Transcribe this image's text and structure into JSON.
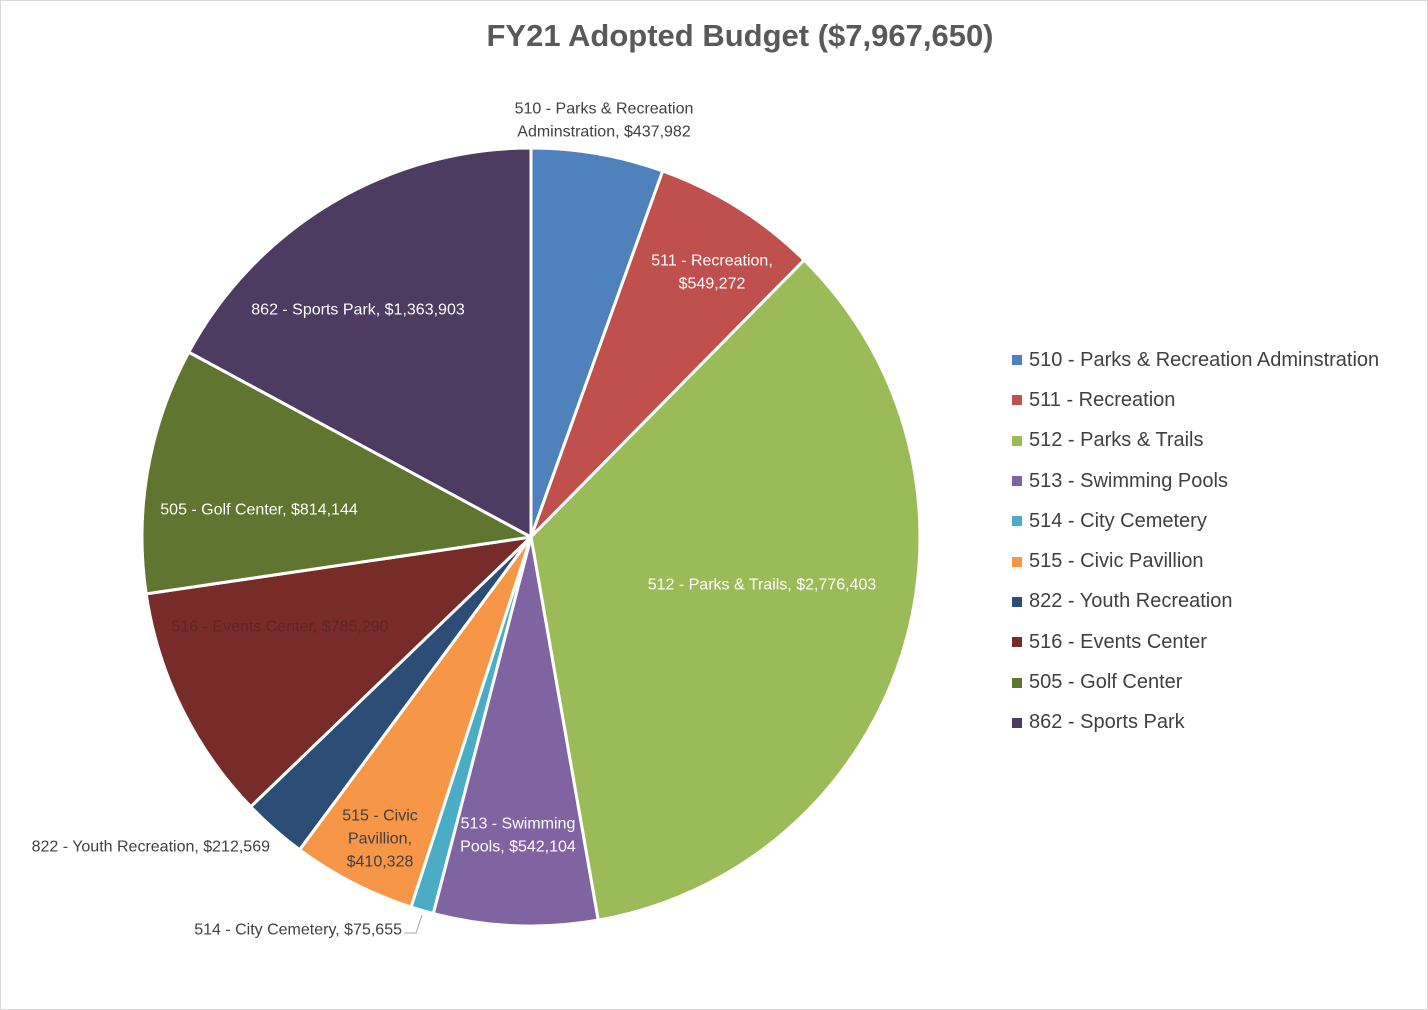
{
  "chart_data": {
    "type": "pie",
    "title": "FY21 Adopted Budget ($7,967,650)",
    "slices": [
      {
        "label": "510 - Parks & Recreation Adminstration",
        "label_lines": [
          "510 - Parks & Recreation",
          "Adminstration,  $437,982"
        ],
        "value": 437982,
        "color": "#4f81bd",
        "label_color": "#404040"
      },
      {
        "label": "511 - Recreation",
        "label_lines": [
          "511 - Recreation,",
          "$549,272"
        ],
        "value": 549272,
        "color": "#c0504d",
        "label_color": "#ffffff"
      },
      {
        "label": "512 - Parks & Trails",
        "label_lines": [
          "512 - Parks & Trails,  $2,776,403"
        ],
        "value": 2776403,
        "color": "#9bbb59",
        "label_color": "#ffffff"
      },
      {
        "label": "513 - Swimming Pools",
        "label_lines": [
          "513 - Swimming",
          "Pools,  $542,104"
        ],
        "value": 542104,
        "color": "#8064a2",
        "label_color": "#ffffff"
      },
      {
        "label": "514 - City Cemetery",
        "label_lines": [
          "514 - City Cemetery,  $75,655"
        ],
        "value": 75655,
        "color": "#4bacc6",
        "label_color": "#404040"
      },
      {
        "label": "515 - Civic Pavillion",
        "label_lines": [
          "515 - Civic",
          "Pavillion,",
          "$410,328"
        ],
        "value": 410328,
        "color": "#f79646",
        "label_color": "#404040"
      },
      {
        "label": "822 - Youth Recreation",
        "label_lines": [
          "822 - Youth Recreation,  $212,569"
        ],
        "value": 212569,
        "color": "#2c4d75",
        "label_color": "#404040"
      },
      {
        "label": "516 - Events Center",
        "label_lines": [
          "516 - Events Center,  $785,290"
        ],
        "value": 785290,
        "color": "#772c2a",
        "label_color": "#5f2523"
      },
      {
        "label": "505 - Golf Center",
        "label_lines": [
          "505 - Golf Center,  $814,144"
        ],
        "value": 814144,
        "color": "#5f7530",
        "label_color": "#ffffff"
      },
      {
        "label": "862 - Sports Park",
        "label_lines": [
          "862 - Sports Park,  $1,363,903"
        ],
        "value": 1363903,
        "color": "#4d3b62",
        "label_color": "#ffffff"
      }
    ],
    "legend_position": "right"
  }
}
